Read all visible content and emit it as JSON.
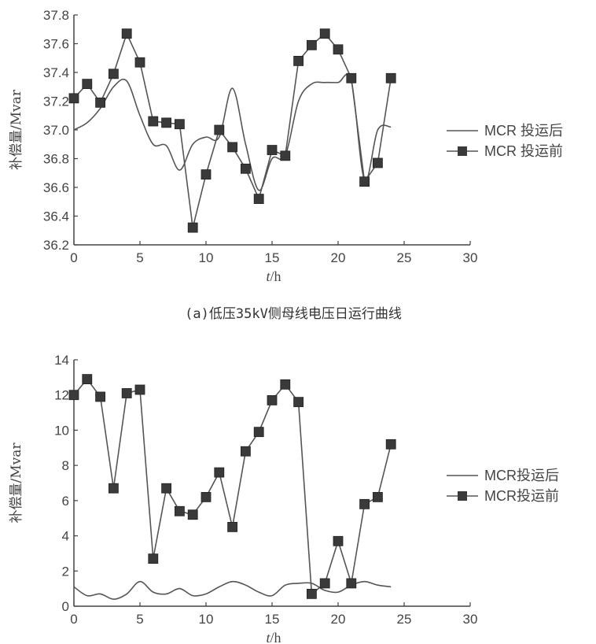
{
  "caption_a": "(a)低压35kV侧母线电压日运行曲线",
  "chart_data": [
    {
      "type": "line",
      "ylabel": "补偿量/Mvar",
      "xlabel_italic": "t",
      "xlabel_rest": "/h",
      "xlim": [
        0,
        30
      ],
      "ylim": [
        36.2,
        37.8
      ],
      "xticks": [
        "0",
        "5",
        "10",
        "15",
        "20",
        "25",
        "30"
      ],
      "yticks": [
        "36.2",
        "36.4",
        "36.6",
        "36.8",
        "37.0",
        "37.2",
        "37.4",
        "37.6",
        "37.8"
      ],
      "legend": [
        "MCR 投运后",
        "MCR 投运前"
      ],
      "series": [
        {
          "name": "MCR 投运后",
          "x": [
            0,
            1,
            2,
            3,
            4,
            5,
            6,
            7,
            8,
            9,
            10,
            11,
            12,
            13,
            14,
            15,
            16,
            17,
            18,
            19,
            20,
            21,
            22,
            23,
            24
          ],
          "values": [
            37.0,
            37.05,
            37.15,
            37.3,
            37.34,
            37.1,
            36.9,
            36.89,
            36.72,
            36.9,
            36.95,
            36.95,
            37.29,
            36.9,
            36.58,
            36.8,
            36.82,
            37.2,
            37.32,
            37.33,
            37.33,
            37.34,
            36.65,
            37.0,
            37.02
          ]
        },
        {
          "name": "MCR 投运前",
          "x": [
            0,
            1,
            2,
            3,
            4,
            5,
            6,
            7,
            8,
            9,
            10,
            11,
            12,
            13,
            14,
            15,
            16,
            17,
            18,
            19,
            20,
            21,
            22,
            23,
            24
          ],
          "values": [
            37.22,
            37.32,
            37.19,
            37.39,
            37.67,
            37.47,
            37.06,
            37.05,
            37.04,
            36.32,
            36.69,
            37.0,
            36.88,
            36.73,
            36.52,
            36.86,
            36.82,
            37.48,
            37.59,
            37.67,
            37.56,
            37.36,
            36.64,
            36.77,
            37.36
          ]
        }
      ]
    },
    {
      "type": "line",
      "ylabel": "补偿量/Mvar",
      "xlabel_italic": "t",
      "xlabel_rest": "/h",
      "xlim": [
        0,
        30
      ],
      "ylim": [
        0,
        14
      ],
      "xticks": [
        "0",
        "5",
        "10",
        "15",
        "20",
        "25",
        "30"
      ],
      "yticks": [
        "0",
        "2",
        "4",
        "6",
        "8",
        "10",
        "12",
        "14"
      ],
      "legend": [
        "MCR投运后",
        "MCR投运前"
      ],
      "series": [
        {
          "name": "MCR投运后",
          "x": [
            0,
            1,
            2,
            3,
            4,
            5,
            6,
            7,
            8,
            9,
            10,
            11,
            12,
            13,
            14,
            15,
            16,
            17,
            18,
            19,
            20,
            21,
            22,
            23,
            24
          ],
          "values": [
            1.1,
            0.6,
            0.7,
            0.4,
            0.7,
            1.4,
            0.8,
            0.7,
            1.0,
            0.6,
            0.7,
            1.1,
            1.4,
            1.2,
            0.8,
            0.6,
            1.2,
            1.3,
            1.3,
            0.9,
            0.8,
            1.2,
            1.4,
            1.2,
            1.1
          ]
        },
        {
          "name": "MCR投运前",
          "x": [
            0,
            1,
            2,
            3,
            4,
            5,
            6,
            7,
            8,
            9,
            10,
            11,
            12,
            13,
            14,
            15,
            16,
            17,
            18,
            19,
            20,
            21,
            22,
            23,
            24
          ],
          "values": [
            12.0,
            12.9,
            11.9,
            6.7,
            12.1,
            12.3,
            2.7,
            6.7,
            5.4,
            5.2,
            6.2,
            7.6,
            4.5,
            8.8,
            9.9,
            11.7,
            12.6,
            11.6,
            0.7,
            1.3,
            3.7,
            1.3,
            5.8,
            6.2,
            9.2
          ]
        }
      ]
    }
  ],
  "colors": {
    "line": "#555555",
    "marker": "#3a3a3a",
    "axis": "#444444"
  }
}
